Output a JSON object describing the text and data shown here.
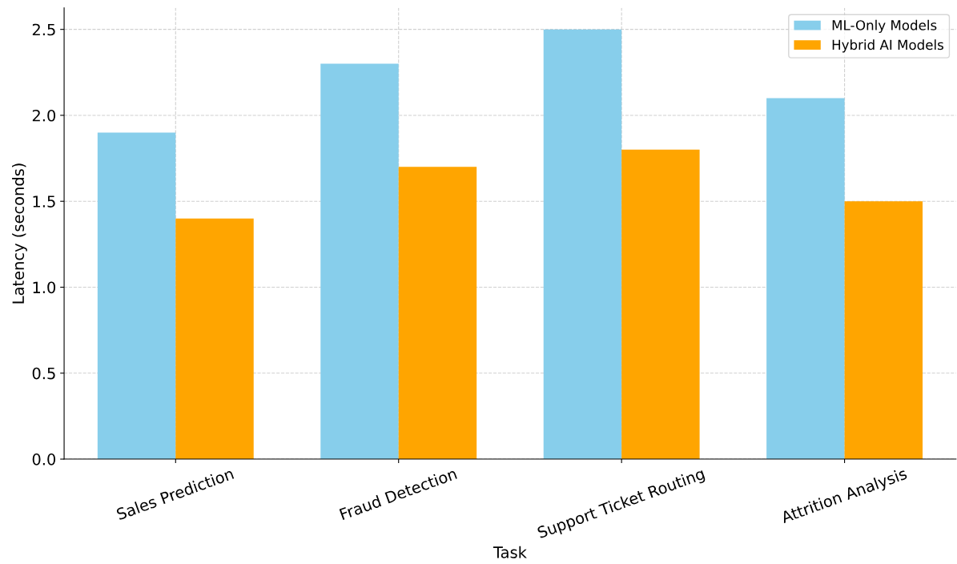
{
  "chart_data": {
    "type": "bar",
    "xlabel": "Task",
    "ylabel": "Latency (seconds)",
    "categories": [
      "Sales Prediction",
      "Fraud Detection",
      "Support Ticket Routing",
      "Attrition Analysis"
    ],
    "series": [
      {
        "name": "ML-Only Models",
        "color": "#87ceeb",
        "values": [
          1.9,
          2.3,
          2.5,
          2.1
        ]
      },
      {
        "name": "Hybrid AI Models",
        "color": "#ffa500",
        "values": [
          1.4,
          1.7,
          1.8,
          1.5
        ]
      }
    ],
    "ylim": [
      0,
      2.625
    ],
    "yticks": [
      {
        "value": 0,
        "label": "0.0"
      },
      {
        "value": 0.5,
        "label": "0.5"
      },
      {
        "value": 1,
        "label": "1.0"
      },
      {
        "value": 1.5,
        "label": "1.5"
      },
      {
        "value": 2,
        "label": "2.0"
      },
      {
        "value": 2.5,
        "label": "2.5"
      }
    ],
    "grid": true,
    "legend": "top right"
  }
}
